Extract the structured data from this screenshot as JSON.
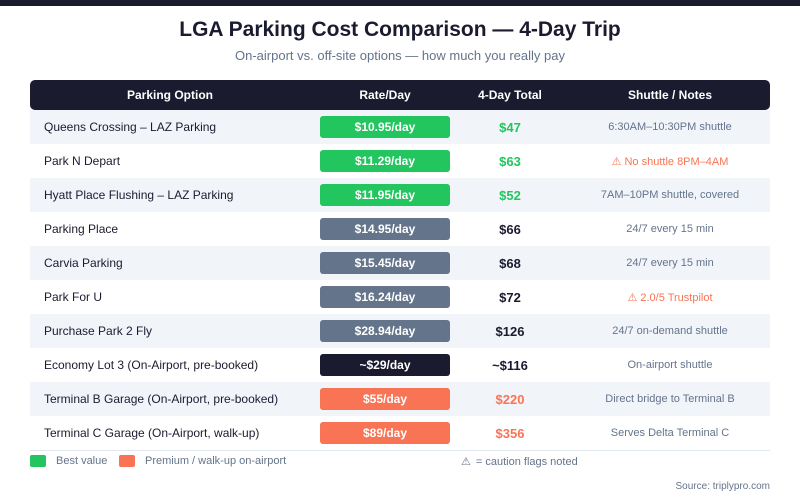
{
  "header": {
    "title": "LGA Parking Cost Comparison — 4-Day Trip",
    "subtitle": "On-airport vs. off-site options — how much you really pay"
  },
  "colors": {
    "best": "#22c55e",
    "standard": "#64748b",
    "onairport": "#1b1b30",
    "premium": "#f87454",
    "dark": "#1b1b30"
  },
  "chart_data": {
    "type": "table",
    "title": "LGA Parking Cost Comparison — 4-Day Trip",
    "columns": [
      "Parking Option",
      "Rate/Day",
      "4-Day Total",
      "Shuttle / Notes"
    ],
    "rows": [
      {
        "option": "Queens Crossing – LAZ Parking",
        "rate": "$10.95/day",
        "total": "$47",
        "notes": "6:30AM–10:30PM shuttle",
        "category": "best",
        "caution": false
      },
      {
        "option": "Park N Depart",
        "rate": "$11.29/day",
        "total": "$63",
        "notes": "No shuttle 8PM–4AM",
        "category": "best",
        "caution": true
      },
      {
        "option": "Hyatt Place Flushing – LAZ Parking",
        "rate": "$11.95/day",
        "total": "$52",
        "notes": "7AM–10PM shuttle, covered",
        "category": "best",
        "caution": false
      },
      {
        "option": "Parking Place",
        "rate": "$14.95/day",
        "total": "$66",
        "notes": "24/7 every 15 min",
        "category": "standard",
        "caution": false
      },
      {
        "option": "Carvia Parking",
        "rate": "$15.45/day",
        "total": "$68",
        "notes": "24/7 every 15 min",
        "category": "standard",
        "caution": false
      },
      {
        "option": "Park For U",
        "rate": "$16.24/day",
        "total": "$72",
        "notes": "2.0/5 Trustpilot",
        "category": "standard",
        "caution": true
      },
      {
        "option": "Purchase Park 2 Fly",
        "rate": "$28.94/day",
        "total": "$126",
        "notes": "24/7 on-demand shuttle",
        "category": "standard",
        "caution": false
      },
      {
        "option": "Economy Lot 3 (On-Airport, pre-booked)",
        "rate": "~$29/day",
        "total": "~$116",
        "notes": "On-airport shuttle",
        "category": "onairport",
        "caution": false
      },
      {
        "option": "Terminal B Garage (On-Airport, pre-booked)",
        "rate": "$55/day",
        "total": "$220",
        "notes": "Direct bridge to Terminal B",
        "category": "premium",
        "caution": false
      },
      {
        "option": "Terminal C Garage (On-Airport, walk-up)",
        "rate": "$89/day",
        "total": "$356",
        "notes": "Serves Delta Terminal C",
        "category": "premium",
        "caution": false
      }
    ],
    "legend": [
      {
        "label": "Best value",
        "category": "best"
      },
      {
        "label": "Premium / walk-up on-airport",
        "category": "premium"
      }
    ],
    "caution_note": "= caution flags noted",
    "source": "Source: triplypro.com"
  }
}
